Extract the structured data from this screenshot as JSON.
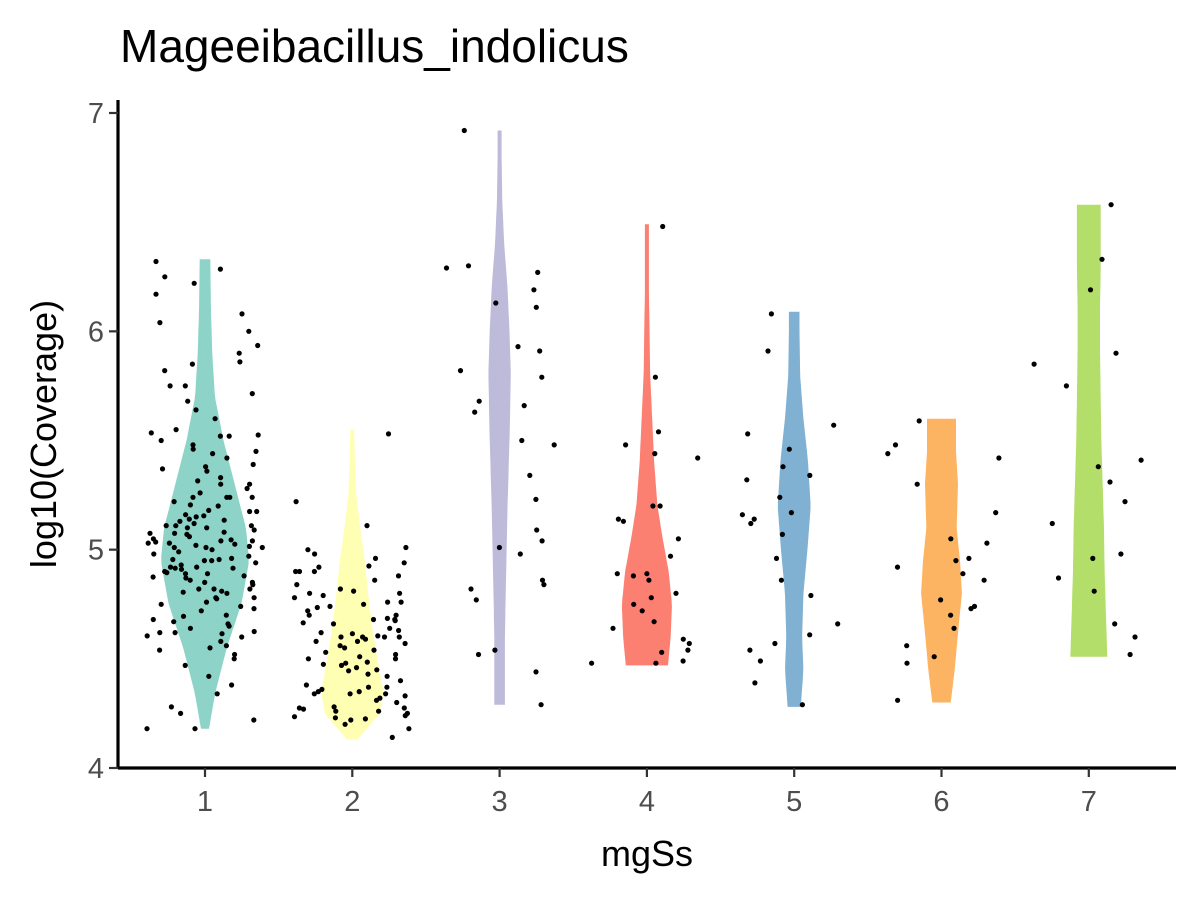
{
  "chart_data": {
    "type": "violin",
    "title": "Mageeibacillus_indolicus",
    "xlabel": "mgSs",
    "ylabel": "log10(Coverage)",
    "ylim": [
      4,
      7
    ],
    "yticks": [
      4,
      5,
      6,
      7
    ],
    "categories": [
      "1",
      "2",
      "3",
      "4",
      "5",
      "6",
      "7"
    ],
    "grid": false,
    "legend": "none",
    "colors": [
      "#8DD3C7",
      "#FFFFB3",
      "#BEBADA",
      "#FB8072",
      "#80B1D3",
      "#FDB462",
      "#B3DE69"
    ],
    "series": [
      {
        "category": "1",
        "range": [
          4.18,
          6.33
        ],
        "density": [
          [
            4.18,
            0.06
          ],
          [
            4.35,
            0.16
          ],
          [
            4.55,
            0.33
          ],
          [
            4.75,
            0.55
          ],
          [
            4.95,
            0.67
          ],
          [
            5.1,
            0.62
          ],
          [
            5.3,
            0.45
          ],
          [
            5.5,
            0.28
          ],
          [
            5.7,
            0.15
          ],
          [
            5.9,
            0.11
          ],
          [
            6.1,
            0.09
          ],
          [
            6.33,
            0.08
          ]
        ],
        "points": [
          4.18,
          4.22,
          4.25,
          4.28,
          4.38,
          4.42,
          4.47,
          4.5,
          4.52,
          4.55,
          4.56,
          4.58,
          4.6,
          4.62,
          4.64,
          4.65,
          4.66,
          4.68,
          4.7,
          4.72,
          4.73,
          4.74,
          4.75,
          4.76,
          4.78,
          4.8,
          4.81,
          4.82,
          4.84,
          4.85,
          4.86,
          4.87,
          4.88,
          4.89,
          4.9,
          4.91,
          4.92,
          4.93,
          4.94,
          4.95,
          4.96,
          4.97,
          4.98,
          4.99,
          5.0,
          5.01,
          5.02,
          5.03,
          5.04,
          5.05,
          5.06,
          5.07,
          5.08,
          5.09,
          5.1,
          5.11,
          5.12,
          5.13,
          5.14,
          5.15,
          5.16,
          5.18,
          5.2,
          5.22,
          5.24,
          5.26,
          5.28,
          5.3,
          5.33,
          5.36,
          5.38,
          5.42,
          5.45,
          5.48,
          5.52,
          5.55,
          5.6,
          5.68,
          5.75,
          5.85,
          5.9,
          6.0,
          6.04,
          6.08,
          6.17,
          6.22,
          6.25,
          6.32
        ],
        "dot_count": 150
      },
      {
        "category": "2",
        "range": [
          4.13,
          5.55
        ],
        "density": [
          [
            4.13,
            0.08
          ],
          [
            4.25,
            0.42
          ],
          [
            4.35,
            0.47
          ],
          [
            4.5,
            0.38
          ],
          [
            4.65,
            0.3
          ],
          [
            4.8,
            0.24
          ],
          [
            4.95,
            0.19
          ],
          [
            5.1,
            0.12
          ],
          [
            5.25,
            0.06
          ],
          [
            5.4,
            0.04
          ],
          [
            5.55,
            0.03
          ]
        ],
        "points": [
          4.14,
          4.18,
          4.2,
          4.22,
          4.24,
          4.25,
          4.26,
          4.27,
          4.28,
          4.3,
          4.31,
          4.32,
          4.33,
          4.34,
          4.35,
          4.36,
          4.37,
          4.38,
          4.4,
          4.42,
          4.43,
          4.45,
          4.46,
          4.48,
          4.5,
          4.51,
          4.52,
          4.53,
          4.54,
          4.55,
          4.56,
          4.58,
          4.6,
          4.62,
          4.63,
          4.64,
          4.66,
          4.68,
          4.7,
          4.72,
          4.74,
          4.76,
          4.78,
          4.8,
          4.82,
          4.84,
          4.86,
          4.88,
          4.9,
          4.92,
          4.94,
          4.96,
          4.98,
          5.0,
          5.11,
          5.22,
          5.53
        ],
        "dot_count": 95
      },
      {
        "category": "3",
        "range": [
          4.29,
          6.92
        ],
        "density": [
          [
            4.29,
            0.08
          ],
          [
            4.6,
            0.08
          ],
          [
            4.9,
            0.1
          ],
          [
            5.2,
            0.12
          ],
          [
            5.5,
            0.15
          ],
          [
            5.8,
            0.17
          ],
          [
            6.0,
            0.15
          ],
          [
            6.2,
            0.12
          ],
          [
            6.4,
            0.07
          ],
          [
            6.6,
            0.04
          ],
          [
            6.8,
            0.03
          ],
          [
            6.92,
            0.03
          ]
        ],
        "points": [
          4.29,
          4.44,
          4.52,
          4.54,
          4.77,
          4.82,
          4.84,
          4.86,
          4.98,
          5.01,
          5.04,
          5.09,
          5.23,
          5.34,
          5.48,
          5.5,
          5.63,
          5.66,
          5.68,
          5.79,
          5.82,
          5.91,
          5.93,
          6.11,
          6.13,
          6.19,
          6.27,
          6.29,
          6.3,
          6.92
        ],
        "dot_count": 30
      },
      {
        "category": "4",
        "range": [
          4.47,
          6.49
        ],
        "density": [
          [
            4.47,
            0.32
          ],
          [
            4.6,
            0.36
          ],
          [
            4.75,
            0.38
          ],
          [
            4.9,
            0.33
          ],
          [
            5.05,
            0.24
          ],
          [
            5.2,
            0.16
          ],
          [
            5.4,
            0.11
          ],
          [
            5.6,
            0.08
          ],
          [
            5.8,
            0.05
          ],
          [
            6.0,
            0.04
          ],
          [
            6.2,
            0.03
          ],
          [
            6.49,
            0.03
          ]
        ],
        "points": [
          4.48,
          4.48,
          4.49,
          4.53,
          4.54,
          4.57,
          4.59,
          4.64,
          4.67,
          4.72,
          4.75,
          4.78,
          4.8,
          4.86,
          4.88,
          4.89,
          4.89,
          4.97,
          5.05,
          5.13,
          5.14,
          5.2,
          5.2,
          5.42,
          5.44,
          5.48,
          5.54,
          5.79,
          6.48
        ],
        "dot_count": 29
      },
      {
        "category": "5",
        "range": [
          4.28,
          6.09
        ],
        "density": [
          [
            4.28,
            0.1
          ],
          [
            4.45,
            0.14
          ],
          [
            4.6,
            0.12
          ],
          [
            4.8,
            0.14
          ],
          [
            5.0,
            0.2
          ],
          [
            5.2,
            0.25
          ],
          [
            5.4,
            0.21
          ],
          [
            5.6,
            0.14
          ],
          [
            5.8,
            0.09
          ],
          [
            6.0,
            0.08
          ],
          [
            6.09,
            0.08
          ]
        ],
        "points": [
          4.29,
          4.39,
          4.49,
          4.54,
          4.57,
          4.61,
          4.66,
          4.79,
          4.86,
          4.96,
          5.07,
          5.12,
          5.14,
          5.16,
          5.17,
          5.24,
          5.32,
          5.34,
          5.38,
          5.46,
          5.53,
          5.57,
          5.91,
          6.08
        ],
        "dot_count": 24
      },
      {
        "category": "6",
        "range": [
          4.3,
          5.6
        ],
        "density": [
          [
            4.3,
            0.14
          ],
          [
            4.45,
            0.2
          ],
          [
            4.65,
            0.26
          ],
          [
            4.8,
            0.31
          ],
          [
            4.95,
            0.28
          ],
          [
            5.1,
            0.23
          ],
          [
            5.3,
            0.25
          ],
          [
            5.45,
            0.22
          ],
          [
            5.6,
            0.22
          ]
        ],
        "points": [
          4.31,
          4.48,
          4.51,
          4.56,
          4.64,
          4.7,
          4.73,
          4.74,
          4.77,
          4.86,
          4.89,
          4.92,
          4.95,
          4.96,
          5.03,
          5.05,
          5.17,
          5.3,
          5.42,
          5.44,
          5.48,
          5.59
        ],
        "dot_count": 22
      },
      {
        "category": "7",
        "range": [
          4.51,
          6.58
        ],
        "density": [
          [
            4.51,
            0.28
          ],
          [
            4.7,
            0.26
          ],
          [
            4.9,
            0.24
          ],
          [
            5.1,
            0.23
          ],
          [
            5.3,
            0.21
          ],
          [
            5.5,
            0.19
          ],
          [
            5.7,
            0.18
          ],
          [
            5.9,
            0.17
          ],
          [
            6.1,
            0.17
          ],
          [
            6.3,
            0.18
          ],
          [
            6.5,
            0.18
          ],
          [
            6.58,
            0.18
          ]
        ],
        "points": [
          4.52,
          4.6,
          4.66,
          4.81,
          4.87,
          4.96,
          4.98,
          5.12,
          5.22,
          5.31,
          5.38,
          5.41,
          5.75,
          5.85,
          5.9,
          6.19,
          6.33,
          6.58
        ],
        "dot_count": 18
      }
    ]
  }
}
